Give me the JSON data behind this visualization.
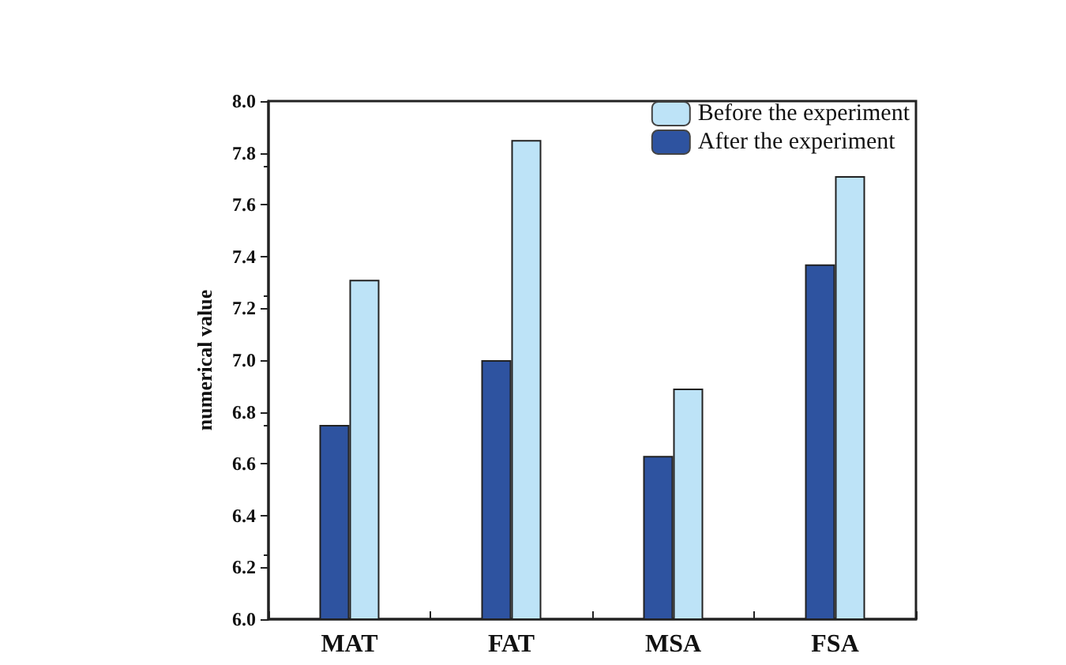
{
  "chart_data": {
    "type": "bar",
    "ylabel": "numerical value",
    "categories": [
      "MAT",
      "FAT",
      "MSA",
      "FSA"
    ],
    "series": [
      {
        "name": "After the experiment",
        "color": "#2e53a0",
        "values": [
          6.75,
          7.0,
          6.63,
          7.37
        ]
      },
      {
        "name": "Before the experiment",
        "color": "#bde3f7",
        "values": [
          7.31,
          7.85,
          6.89,
          7.71
        ]
      }
    ],
    "ylim": [
      6.0,
      8.0
    ],
    "yticks": [
      {
        "value": 6.0,
        "label": "6.0"
      },
      {
        "value": 6.2,
        "label": "6.2"
      },
      {
        "value": 6.4,
        "label": "6.4"
      },
      {
        "value": 6.6,
        "label": "6.6"
      },
      {
        "value": 6.8,
        "label": "6.8"
      },
      {
        "value": 7.0,
        "label": "7.0"
      },
      {
        "value": 7.2,
        "label": "7.2"
      },
      {
        "value": 7.4,
        "label": "7.4"
      },
      {
        "value": 7.6,
        "label": "7.6"
      },
      {
        "value": 7.8,
        "label": "7.8"
      },
      {
        "value": 8.0,
        "label": "8.0"
      }
    ],
    "grid": false,
    "legend": "top right"
  }
}
